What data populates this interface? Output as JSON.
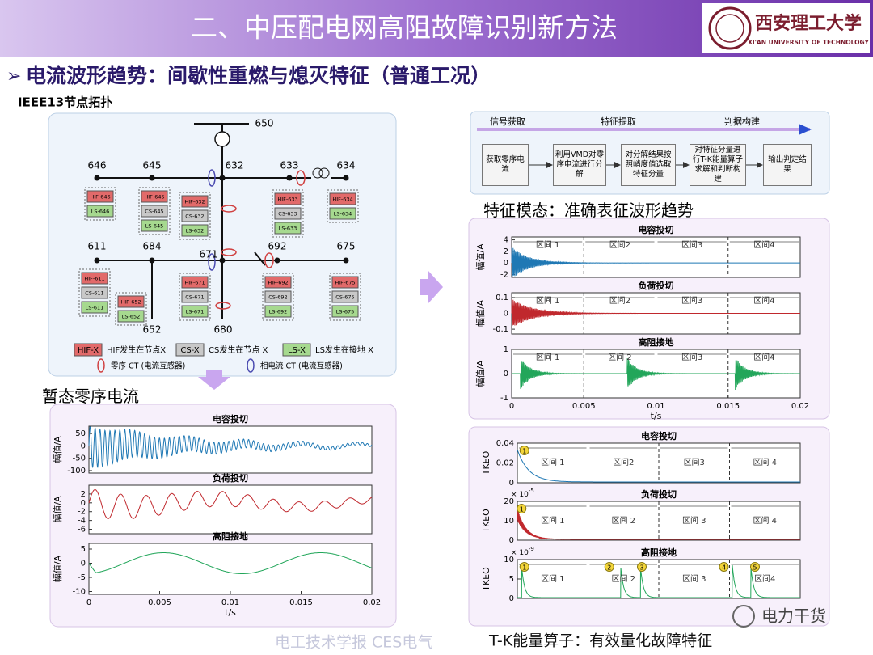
{
  "header": {
    "title": "二、中压配电网高阻故障识别新方法",
    "logo": "西安理工大学",
    "logo_en": "XI'AN UNIVERSITY OF TECHNOLOGY"
  },
  "subtitle": "电流波形趋势：间歇性重燃与熄灭特征（普通工况）",
  "topology": {
    "title": "IEEE13节点拓扑",
    "nodes": [
      "650",
      "646",
      "645",
      "632",
      "633",
      "634",
      "611",
      "684",
      "671",
      "692",
      "675",
      "652",
      "680"
    ],
    "groups": [
      [
        "HIF-646",
        "LS-646"
      ],
      [
        "HIF-645",
        "CS-645",
        "LS-645"
      ],
      [
        "HIF-632",
        "CS-632",
        "LS-632"
      ],
      [
        "HIF-633",
        "CS-633",
        "LS-633"
      ],
      [
        "HIF-634",
        "LS-634"
      ],
      [
        "HIF-611",
        "CS-611",
        "LS-611"
      ],
      [
        "HIF-652",
        "LS-652"
      ],
      [
        "HIF-671",
        "CS-671",
        "LS-671"
      ],
      [
        "HIF-692",
        "CS-692",
        "LS-692"
      ],
      [
        "HIF-675",
        "CS-675",
        "LS-675"
      ]
    ],
    "legend": [
      {
        "box": "HIF-X",
        "text": "HIF发生在节点X",
        "color": "#e26a6a"
      },
      {
        "box": "CS-X",
        "text": "CS发生在节点 X",
        "color": "#c8c8c8"
      },
      {
        "box": "LS-X",
        "text": "LS发生在接地 X",
        "color": "#a6d98f"
      }
    ],
    "ct_legend": [
      {
        "text": "零序 CT (电流互感器)",
        "color": "#d04040"
      },
      {
        "text": "相电流 CT (电流互感器)",
        "color": "#4a4ab0"
      }
    ]
  },
  "transient": {
    "title": "暂态零序电流",
    "charts": [
      {
        "type": "line",
        "title": "电容投切",
        "ylabel": "幅值/A",
        "color": "#1f78b4",
        "ylim": [
          -110,
          80
        ],
        "yticks": [
          50,
          0,
          -50,
          -100
        ],
        "xlim": [
          0,
          0.02
        ]
      },
      {
        "type": "line",
        "title": "负荷投切",
        "ylabel": "幅值/A",
        "color": "#c0282d",
        "ylim": [
          -7,
          4
        ],
        "yticks": [
          2,
          0,
          -2,
          -4,
          -6
        ],
        "xlim": [
          0,
          0.02
        ]
      },
      {
        "type": "line",
        "title": "高阻接地",
        "ylabel": "幅值/A",
        "color": "#22a65a",
        "ylim": [
          -11,
          7
        ],
        "yticks": [
          5,
          0,
          -5,
          -10
        ],
        "xlim": [
          0,
          0.02
        ],
        "xticks": [
          0,
          0.005,
          0.01,
          0.015,
          0.02
        ],
        "xlabel": "t/s"
      }
    ]
  },
  "flow": {
    "stages": [
      "信号获取",
      "特征提取",
      "判据构建"
    ],
    "steps": [
      "获取零序电流",
      "利用VMD对零序电流进行分解",
      "对分解结果按照峭度值选取特征分量",
      "对特征分量进行T-K能量算子求解和判断构建",
      "输出判定结果"
    ]
  },
  "modal": {
    "title": "特征模态：准确表征波形趋势",
    "charts": [
      {
        "type": "line",
        "title": "电容投切",
        "ylabel": "幅值/A",
        "color": "#1f78b4",
        "ylim": [
          -2.5,
          4.5
        ],
        "yticks": [
          4,
          2,
          0,
          -2
        ],
        "xlim": [
          0,
          0.02
        ],
        "dividers": [
          0.005,
          0.01,
          0.015
        ],
        "intervals": [
          "区间 1",
          "区间2",
          "区间3",
          "区间4"
        ]
      },
      {
        "type": "line",
        "title": "负荷投切",
        "ylabel": "幅值/A",
        "color": "#c0282d",
        "ylim": [
          -0.13,
          0.13
        ],
        "yticks": [
          0.1,
          0,
          -0.1
        ],
        "xlim": [
          0,
          0.02
        ],
        "dividers": [
          0.005,
          0.01,
          0.015
        ],
        "intervals": [
          "区间 1",
          "区间2",
          "区间3",
          "区间4"
        ]
      },
      {
        "type": "line",
        "title": "高阻接地",
        "ylabel": "幅值/A",
        "color": "#22a65a",
        "ylim": [
          -1,
          1
        ],
        "yticks": [
          1,
          0,
          -1
        ],
        "xlim": [
          0,
          0.02
        ],
        "xticks": [
          0,
          0.005,
          0.01,
          0.015,
          0.02
        ],
        "xlabel": "t/s",
        "dividers": [
          0.005,
          0.01,
          0.015
        ],
        "intervals": [
          "区间 1",
          "区间 2",
          "区间3",
          "区间4"
        ]
      }
    ]
  },
  "tkeo": {
    "charts": [
      {
        "type": "line",
        "title": "电容投切",
        "ylabel": "TKEO",
        "color": "#1f78b4",
        "ylim": [
          0,
          0.04
        ],
        "yticks": [
          0.04,
          0.02,
          0
        ],
        "xlim": [
          0,
          0.02
        ],
        "dividers": [
          0.005,
          0.01,
          0.015
        ],
        "intervals": [
          "区间 1",
          "区间2",
          "区间3",
          "区间 4"
        ],
        "markers": [
          "1"
        ]
      },
      {
        "type": "line",
        "title": "负荷投切",
        "ylabel": "TKEO",
        "color": "#c0282d",
        "ylim": [
          0,
          20
        ],
        "yticks": [
          20,
          10,
          0
        ],
        "multiplier": "× 10",
        "exponent": "-5",
        "xlim": [
          0,
          0.02
        ],
        "dividers": [
          0.005,
          0.01,
          0.015
        ],
        "intervals": [
          "区间 1",
          "区间 2",
          "区间 3",
          "区间 4"
        ],
        "markers": [
          "1"
        ]
      },
      {
        "type": "line",
        "title": "高阻接地",
        "ylabel": "TKEO",
        "color": "#22a65a",
        "ylim": [
          0,
          10
        ],
        "yticks": [
          10,
          5,
          0
        ],
        "multiplier": "× 10",
        "exponent": "-9",
        "xlim": [
          0,
          0.02
        ],
        "dividers": [
          0.005,
          0.01,
          0.015
        ],
        "intervals": [
          "区间 1",
          "区间 2",
          "区间 3",
          "区间4"
        ],
        "markers": [
          "1",
          "2",
          "3",
          "4",
          "5"
        ]
      }
    ]
  },
  "footer": {
    "source": "电工技术学报  CES电气",
    "caption": "T-K能量算子：有效量化故障特征",
    "watermark": "电力干货"
  }
}
